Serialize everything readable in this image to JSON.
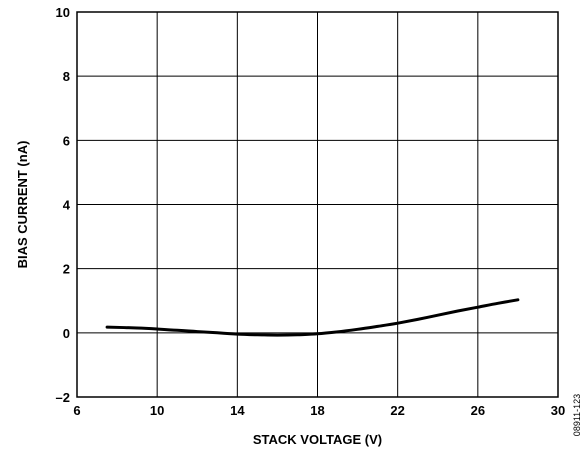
{
  "chart_data": {
    "type": "line",
    "xlabel": "STACK VOLTAGE (V)",
    "ylabel": "BIAS CURRENT (nA)",
    "xlim": [
      6,
      30
    ],
    "ylim": [
      -2,
      10
    ],
    "x_ticks": [
      "6",
      "10",
      "14",
      "18",
      "22",
      "26",
      "30"
    ],
    "y_ticks": [
      "10",
      "8",
      "6",
      "4",
      "2",
      "0",
      "–2"
    ],
    "grid": true,
    "figure_id": "08911-123",
    "series": [
      {
        "x": [
          7.5,
          9,
          10,
          11,
          12,
          13,
          14,
          15,
          16,
          17,
          18,
          19,
          20,
          21,
          22,
          23,
          24,
          25,
          26,
          27,
          28
        ],
        "y": [
          0.18,
          0.15,
          0.12,
          0.08,
          0.04,
          0.0,
          -0.04,
          -0.06,
          -0.07,
          -0.06,
          -0.03,
          0.03,
          0.11,
          0.2,
          0.3,
          0.42,
          0.55,
          0.68,
          0.8,
          0.92,
          1.03
        ]
      }
    ]
  }
}
